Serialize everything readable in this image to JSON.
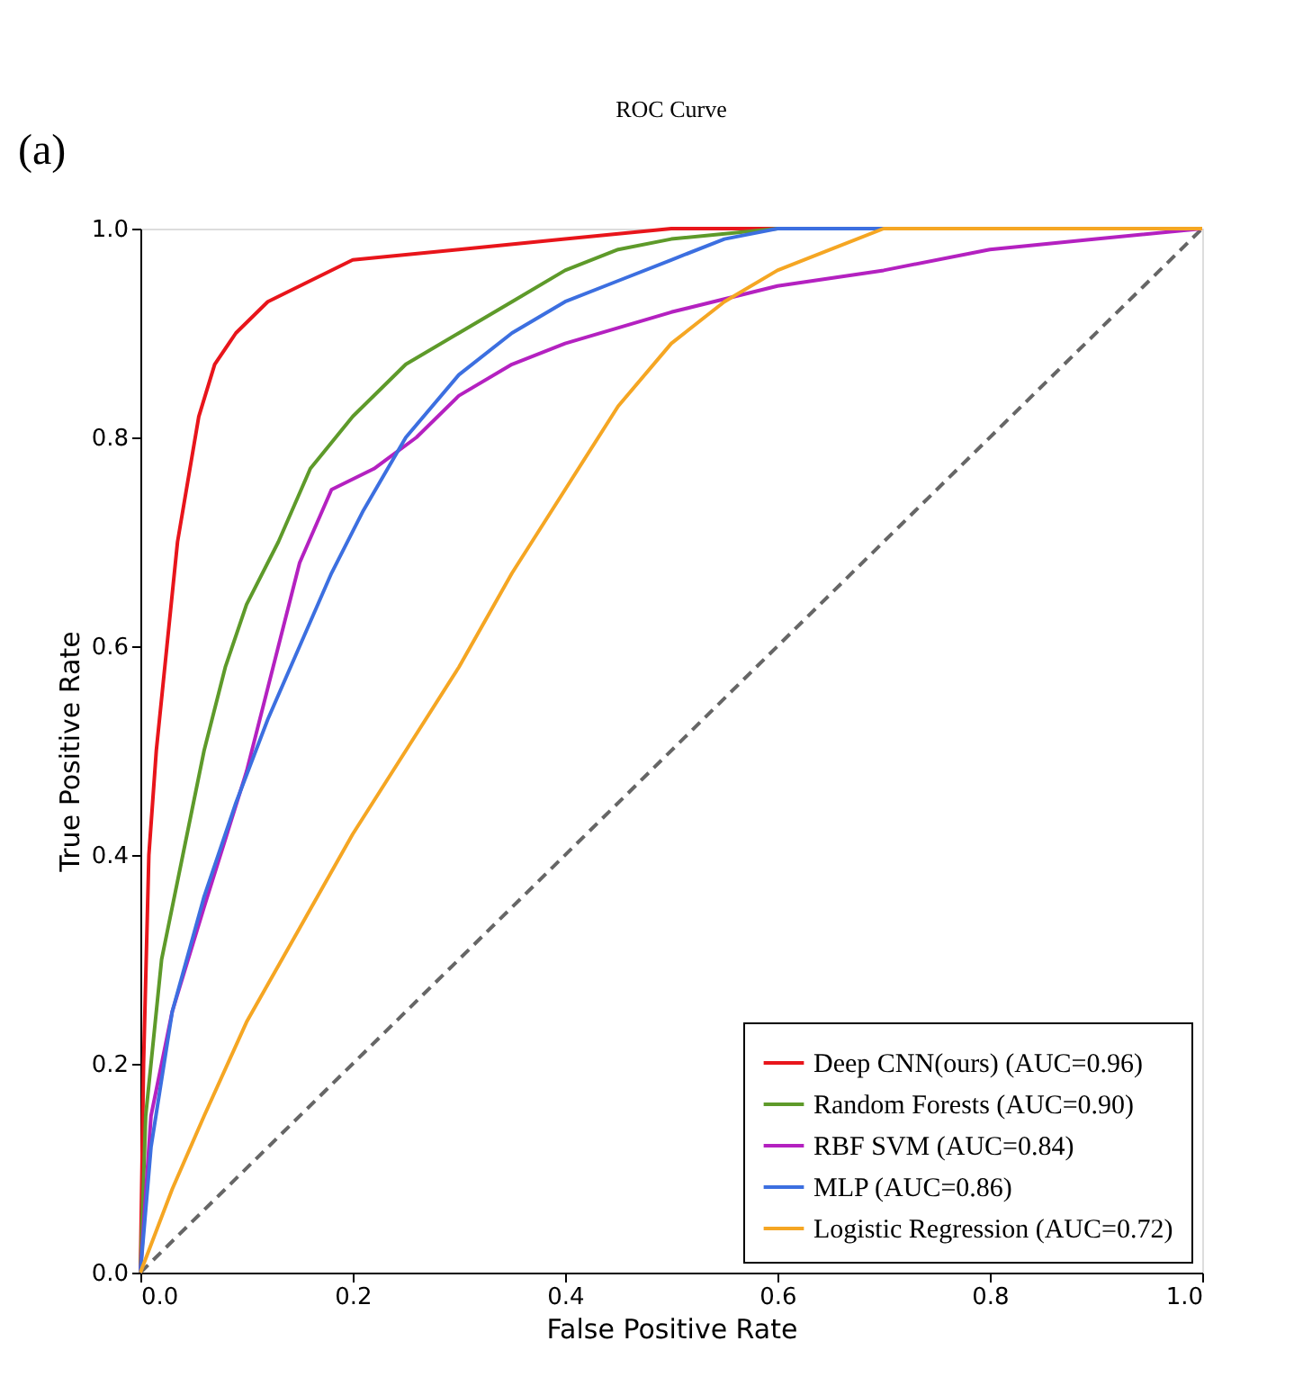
{
  "chart_data": {
    "type": "line",
    "title": "ROC Curve",
    "xlabel": "False Positive Rate",
    "ylabel": "True Positive Rate",
    "annotations": [
      "(a)"
    ],
    "xlim": [
      0,
      1
    ],
    "ylim": [
      0,
      1
    ],
    "xticks": [
      {
        "value": 0,
        "label": "0.0"
      },
      0.2,
      0.4,
      0.6,
      0.8,
      {
        "value": 1,
        "label": "1.0"
      }
    ],
    "yticks": [
      {
        "value": 0,
        "label": "0.0"
      },
      0.2,
      0.4,
      0.6,
      0.8,
      {
        "value": 1,
        "label": "1.0"
      }
    ],
    "grid": false,
    "legend": "bottom right",
    "marker": "none",
    "line_style": "solid",
    "series": [
      {
        "name": "Deep CNN(ours) (AUC=0.96)",
        "color": "#e8151b",
        "x": [
          0,
          0.003,
          0.008,
          0.015,
          0.025,
          0.035,
          0.045,
          0.055,
          0.07,
          0.09,
          0.12,
          0.16,
          0.2,
          0.3,
          0.4,
          0.5,
          1
        ],
        "values": [
          0,
          0.2,
          0.4,
          0.5,
          0.6,
          0.7,
          0.76,
          0.82,
          0.87,
          0.9,
          0.93,
          0.95,
          0.97,
          0.98,
          0.99,
          1.0,
          1.0
        ]
      },
      {
        "name": "Random Forests (AUC=0.90)",
        "color": "#5e9a2a",
        "x": [
          0,
          0.005,
          0.02,
          0.04,
          0.06,
          0.08,
          0.1,
          0.13,
          0.16,
          0.2,
          0.25,
          0.3,
          0.35,
          0.4,
          0.45,
          0.5,
          0.6,
          1
        ],
        "values": [
          0,
          0.15,
          0.3,
          0.4,
          0.5,
          0.58,
          0.64,
          0.7,
          0.77,
          0.82,
          0.87,
          0.9,
          0.93,
          0.96,
          0.98,
          0.99,
          1.0,
          1.0
        ]
      },
      {
        "name": "RBF SVM (AUC=0.84)",
        "color": "#b421c0",
        "x": [
          0,
          0.01,
          0.03,
          0.06,
          0.1,
          0.13,
          0.15,
          0.18,
          0.22,
          0.26,
          0.3,
          0.35,
          0.4,
          0.5,
          0.6,
          0.7,
          0.8,
          0.9,
          1
        ],
        "values": [
          0,
          0.15,
          0.25,
          0.35,
          0.48,
          0.6,
          0.68,
          0.75,
          0.77,
          0.8,
          0.84,
          0.87,
          0.89,
          0.92,
          0.945,
          0.96,
          0.98,
          0.99,
          1.0
        ]
      },
      {
        "name": "MLP (AUC=0.86)",
        "color": "#3c6fe0",
        "x": [
          0,
          0.01,
          0.03,
          0.06,
          0.09,
          0.12,
          0.15,
          0.18,
          0.21,
          0.25,
          0.3,
          0.35,
          0.4,
          0.45,
          0.5,
          0.55,
          0.6,
          1
        ],
        "values": [
          0,
          0.12,
          0.25,
          0.36,
          0.45,
          0.53,
          0.6,
          0.67,
          0.73,
          0.8,
          0.86,
          0.9,
          0.93,
          0.95,
          0.97,
          0.99,
          1.0,
          1.0
        ]
      },
      {
        "name": "Logistic Regression (AUC=0.72)",
        "color": "#f5a623",
        "x": [
          0,
          0.03,
          0.06,
          0.1,
          0.15,
          0.2,
          0.25,
          0.3,
          0.35,
          0.4,
          0.45,
          0.5,
          0.55,
          0.6,
          0.65,
          0.7,
          1
        ],
        "values": [
          0,
          0.08,
          0.15,
          0.24,
          0.33,
          0.42,
          0.5,
          0.58,
          0.67,
          0.75,
          0.83,
          0.89,
          0.93,
          0.96,
          0.98,
          1.0,
          1.0
        ]
      },
      {
        "color": "#666666",
        "line_style": "dashed",
        "x": [
          0,
          1
        ],
        "values": [
          0,
          1
        ]
      }
    ]
  }
}
